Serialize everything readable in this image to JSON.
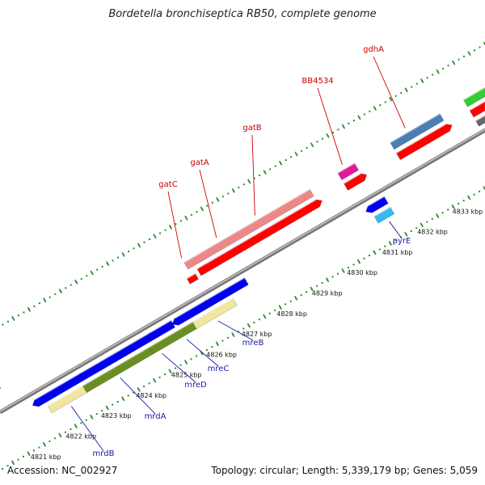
{
  "title": "Bordetella bronchiseptica RB50, complete genome",
  "footer": {
    "accession": "Accession: NC_002927",
    "summary": "Topology: circular; Length: 5,339,179 bp; Genes: 5,059"
  },
  "ticks": [
    {
      "label": "4821 kbp",
      "pos": 4821
    },
    {
      "label": "4822 kbp",
      "pos": 4822
    },
    {
      "label": "4823 kbp",
      "pos": 4823
    },
    {
      "label": "4824 kbp",
      "pos": 4824
    },
    {
      "label": "4825 kbp",
      "pos": 4825
    },
    {
      "label": "4826 kbp",
      "pos": 4826
    },
    {
      "label": "4827 kbp",
      "pos": 4827
    },
    {
      "label": "4828 kbp",
      "pos": 4828
    },
    {
      "label": "4829 kbp",
      "pos": 4829
    },
    {
      "label": "4830 kbp",
      "pos": 4830
    },
    {
      "label": "4831 kbp",
      "pos": 4831
    },
    {
      "label": "4832 kbp",
      "pos": 4832
    },
    {
      "label": "4833 kbp",
      "pos": 4833
    }
  ],
  "genes_forward": [
    {
      "name": "gatC",
      "color": "#ee8888"
    },
    {
      "name": "gatA",
      "color": "#ee8888"
    },
    {
      "name": "gatB",
      "color": "#ee8888"
    },
    {
      "name": "BB4534",
      "color": "#e0189a"
    },
    {
      "name": "gdhA",
      "color": "#4a7fb5"
    }
  ],
  "genes_reverse": [
    {
      "name": "mrdB",
      "color": "#f0e6a0"
    },
    {
      "name": "mrdA",
      "color": "#6b8e23"
    },
    {
      "name": "mreD",
      "color": "#6b8e23"
    },
    {
      "name": "mreC",
      "color": "#6b8e23"
    },
    {
      "name": "mreB",
      "color": "#f0e6a0"
    },
    {
      "name": "pyrE",
      "color": "#33bbee"
    }
  ],
  "colors": {
    "forward_label": "#cc0000",
    "reverse_label": "#1a1aa8",
    "tick_green": "#2e8b2e",
    "backbone": "#8a8a8a",
    "cds_red": "#ff0000",
    "cds_blue": "#0000ee"
  }
}
